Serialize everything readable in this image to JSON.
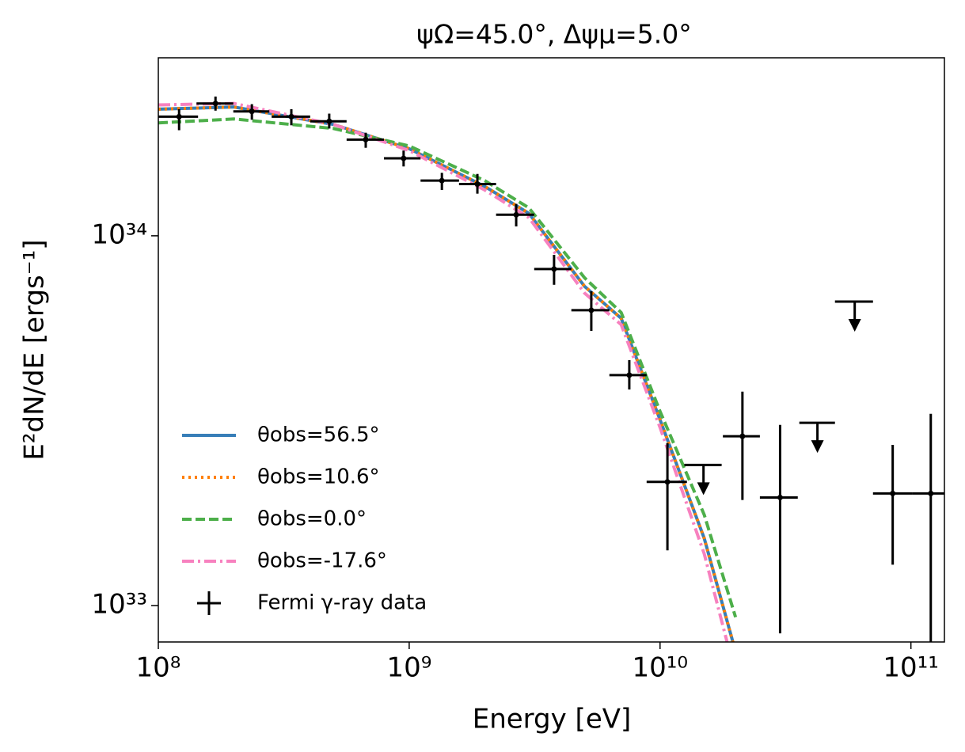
{
  "chart_data": {
    "type": "line",
    "title": "ψΩ=45.0°, Δψμ=5.0°",
    "xlabel": "Energy [eV]",
    "ylabel": "E²dN/dE [ergs⁻¹]",
    "xscale": "log",
    "yscale": "log",
    "xlim": [
      100000000.0,
      136000000000.0
    ],
    "ylim": [
      7.97e+32,
      3.03e+34
    ],
    "xticks": [
      {
        "value": 100000000.0,
        "label": "10⁸"
      },
      {
        "value": 1000000000.0,
        "label": "10⁹"
      },
      {
        "value": 10000000000.0,
        "label": "10¹⁰"
      },
      {
        "value": 100000000000.0,
        "label": "10¹¹"
      }
    ],
    "yticks": [
      {
        "value": 1e+33,
        "label": "10³³"
      },
      {
        "value": 1e+34,
        "label": "10³⁴"
      }
    ],
    "legend": "lower left",
    "x": [
      100000000.0,
      200000000.0,
      500000000.0,
      1000000000.0,
      2000000000.0,
      3000000000.0,
      5000000000.0,
      7000000000.0,
      10000000000.0,
      15000000000.0,
      20000000000.0
    ],
    "series": [
      {
        "name": "θobs=56.5°",
        "color": "#377eb8",
        "style": "solid",
        "values": [
          2.2e+34,
          2.23e+34,
          2e+34,
          1.72e+34,
          1.36e+34,
          1.15e+34,
          7.3e+33,
          5.98e+33,
          3.18e+33,
          1.52e+33,
          7.5e+32
        ]
      },
      {
        "name": "θobs=10.6°",
        "color": "#ff7f00",
        "style": "dotted",
        "values": [
          2.2e+34,
          2.23e+34,
          2e+34,
          1.72e+34,
          1.36e+34,
          1.15e+34,
          7.3e+33,
          5.98e+33,
          3.18e+33,
          1.52e+33,
          7.5e+32
        ]
      },
      {
        "name": "θobs=0.0°",
        "color": "#4daf4a",
        "style": "dashed",
        "values": [
          2.02e+34,
          2.07e+34,
          1.95e+34,
          1.75e+34,
          1.41e+34,
          1.19e+34,
          7.7e+33,
          6.2e+33,
          3.35e+33,
          1.76e+33,
          9.3e+32
        ]
      },
      {
        "name": "θobs=-17.6°",
        "color": "#f781bf",
        "style": "dashdot",
        "values": [
          2.26e+34,
          2.28e+34,
          2e+34,
          1.7e+34,
          1.33e+34,
          1.12e+34,
          7e+33,
          5.75e+33,
          3.03e+33,
          1.38e+33,
          6.5e+32
        ]
      }
    ],
    "errorbar": {
      "name": "Fermi γ-ray data",
      "color": "#000000",
      "x": [
        121000000.0,
        169000000.0,
        236000000.0,
        339000000.0,
        480000000.0,
        671000000.0,
        950000000.0,
        1350000000.0,
        1870000000.0,
        2670000000.0,
        3780000000.0,
        5320000000.0,
        7540000000.0,
        10700000000.0,
        21300000000.0,
        30100000000.0,
        84600000000.0,
        120000000000.0
      ],
      "x_lo": [
        100000000.0,
        142000000.0,
        199000000.0,
        283000000.0,
        403000000.0,
        563000000.0,
        793000000.0,
        1110000000.0,
        1580000000.0,
        2220000000.0,
        3150000000.0,
        4430000000.0,
        6280000000.0,
        8840000000.0,
        17800000000.0,
        25000000000.0,
        70600000000.0,
        101000000000.0
      ],
      "x_hi": [
        144000000.0,
        199000000.0,
        277000000.0,
        403000000.0,
        563000000.0,
        793000000.0,
        1110000000.0,
        1580000000.0,
        2220000000.0,
        3150000000.0,
        4430000000.0,
        6280000000.0,
        8840000000.0,
        12800000000.0,
        25000000000.0,
        35400000000.0,
        101000000000.0,
        136000000000.0
      ],
      "values": [
        2.1e+34,
        2.28e+34,
        2.17e+34,
        2.1e+34,
        2.04e+34,
        1.82e+34,
        1.62e+34,
        1.41e+34,
        1.38e+34,
        1.14e+34,
        8.13e+33,
        6.29e+33,
        4.2e+33,
        2.16e+33,
        2.87e+33,
        1.96e+33,
        2.01e+33,
        2.01e+33
      ],
      "y_lo": [
        1.93e+34,
        2.18e+34,
        2.06e+34,
        1.99e+34,
        1.95e+34,
        1.73e+34,
        1.54e+34,
        1.33e+34,
        1.3e+34,
        1.06e+34,
        7.37e+33,
        5.53e+33,
        3.84e+33,
        1.41e+33,
        1.93e+33,
        8.41e+32,
        1.29e+33,
        5e+32
      ],
      "y_hi": [
        2.2e+34,
        2.38e+34,
        2.27e+34,
        2.2e+34,
        2.14e+34,
        1.9e+34,
        1.7e+34,
        1.48e+34,
        1.47e+34,
        1.22e+34,
        8.88e+33,
        7.08e+33,
        4.61e+33,
        2.75e+33,
        3.79e+33,
        3.08e+33,
        2.72e+33,
        3.3e+33
      ]
    },
    "upper_limits": {
      "color": "#000000",
      "x": [
        14900000000.0,
        42400000000.0,
        59700000000.0
      ],
      "x_lo": [
        12500000000.0,
        35900000000.0,
        49800000000.0
      ],
      "x_hi": [
        17600000000.0,
        49800000000.0,
        70600000000.0
      ],
      "values": [
        2.4e+33,
        3.12e+33,
        6.64e+33
      ]
    }
  }
}
